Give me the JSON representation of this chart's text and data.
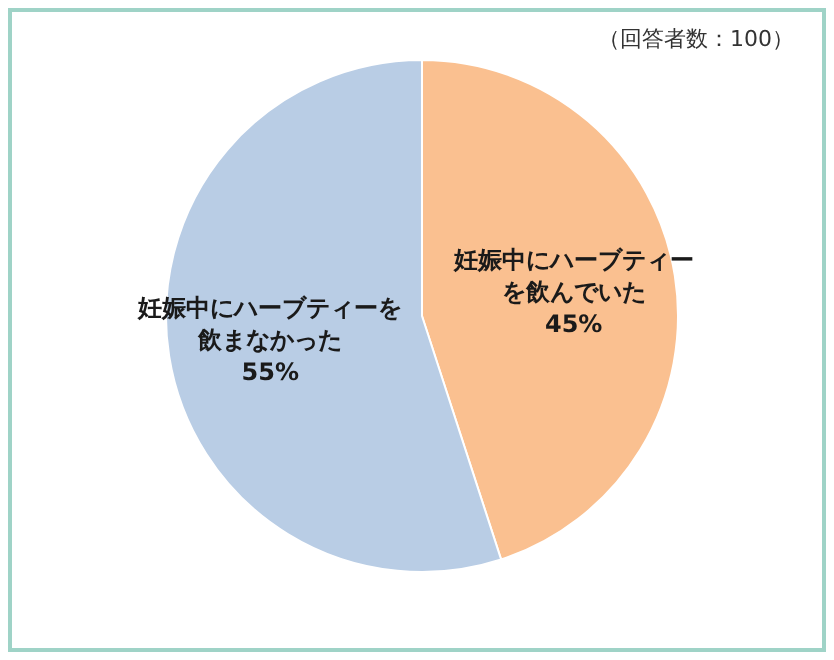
{
  "chart_data": {
    "type": "pie",
    "categories": [
      "妊娠中にハーブティーを飲んでいた",
      "妊娠中にハーブティーを飲まなかった"
    ],
    "values": [
      45,
      55
    ],
    "colors": [
      "#fac090",
      "#b9cde5"
    ],
    "value_labels": [
      "45%",
      "55%"
    ],
    "annotations": [
      "（回答者数：100）"
    ]
  }
}
